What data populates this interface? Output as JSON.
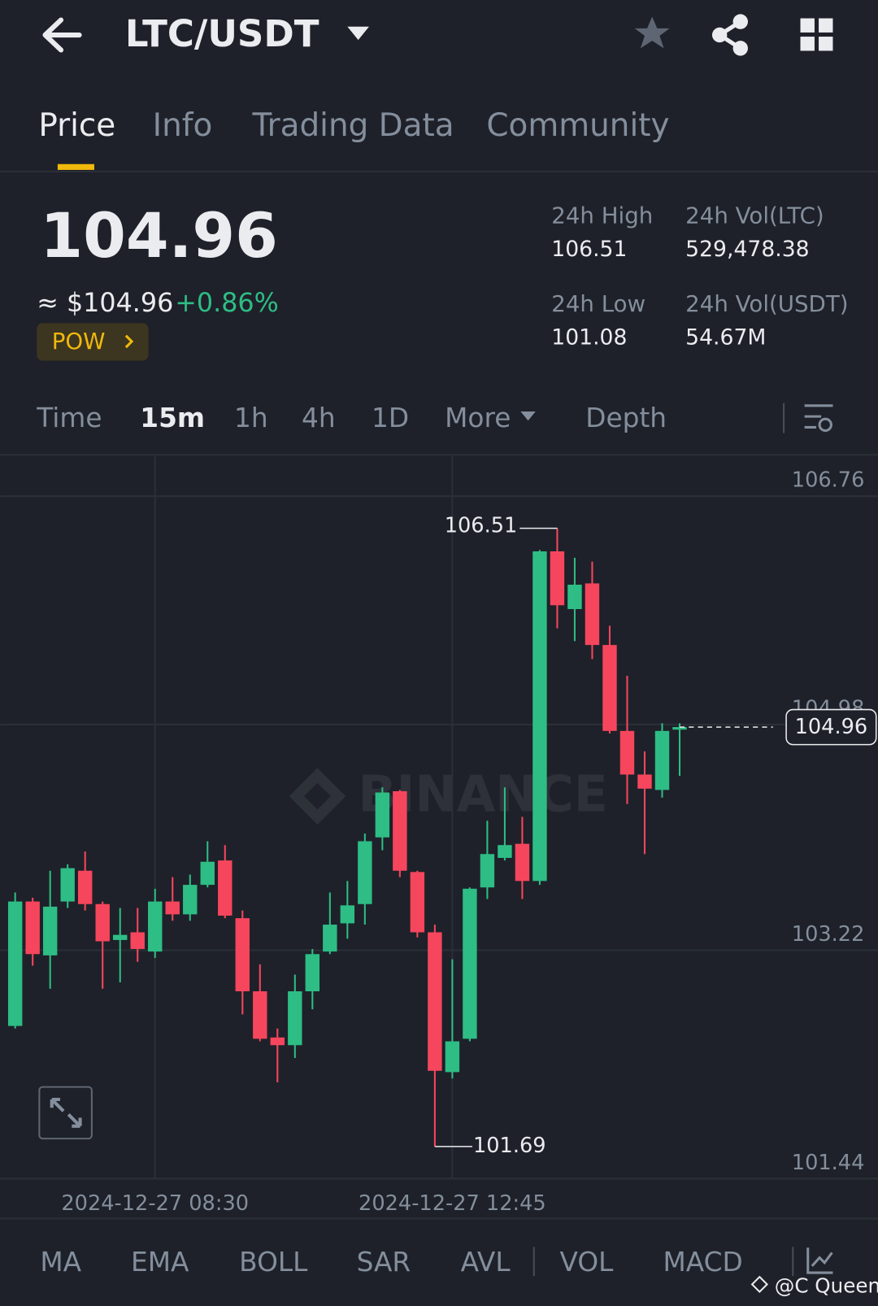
{
  "header": {
    "title": "LTC/USDT"
  },
  "tabs": [
    "Price",
    "Info",
    "Trading Data",
    "Community"
  ],
  "ticker": {
    "price": "104.96",
    "approx": "≈ $104.96",
    "change": "+0.86%",
    "tag": "POW",
    "stats": [
      {
        "label": "24h High",
        "value": "106.51"
      },
      {
        "label": "24h Vol(LTC)",
        "value": "529,478.38"
      },
      {
        "label": "24h Low",
        "value": "101.08"
      },
      {
        "label": "24h Vol(USDT)",
        "value": "54.67M"
      }
    ]
  },
  "intervals": [
    "Time",
    "15m",
    "1h",
    "4h",
    "1D",
    "More",
    "Depth"
  ],
  "chart_data": {
    "type": "candlestick",
    "watermark": "BINANCE",
    "categories": [
      null,
      null,
      null,
      null,
      null,
      null,
      null,
      null,
      "2024-12-27 08:30",
      null,
      null,
      null,
      null,
      null,
      null,
      null,
      null,
      null,
      null,
      null,
      null,
      null,
      null,
      null,
      null,
      "2024-12-27 12:45",
      null,
      null,
      null,
      null,
      null,
      null,
      null,
      null,
      null,
      null,
      null,
      null,
      null
    ],
    "open": [
      102.63,
      103.6,
      103.18,
      103.6,
      103.84,
      103.58,
      103.3,
      103.36,
      103.21,
      103.6,
      103.5,
      103.73,
      103.92,
      103.47,
      102.9,
      102.54,
      102.48,
      102.9,
      103.21,
      103.43,
      103.58,
      104.1,
      104.46,
      103.83,
      103.36,
      102.27,
      102.53,
      103.71,
      103.94,
      104.05,
      103.76,
      106.33,
      105.88,
      106.08,
      105.6,
      104.93,
      104.59,
      104.47,
      104.94
    ],
    "high": [
      103.67,
      103.63,
      103.84,
      103.89,
      103.99,
      103.6,
      103.55,
      103.55,
      103.7,
      103.79,
      103.81,
      104.07,
      104.04,
      103.53,
      103.11,
      102.61,
      103.03,
      103.23,
      103.67,
      103.76,
      104.13,
      104.49,
      104.47,
      103.84,
      103.42,
      103.15,
      103.71,
      104.23,
      104.49,
      104.26,
      106.34,
      106.51,
      106.28,
      106.25,
      105.75,
      105.36,
      104.77,
      104.99,
      104.99
    ],
    "low": [
      102.61,
      103.1,
      102.92,
      103.55,
      103.53,
      102.92,
      102.97,
      103.13,
      103.16,
      103.45,
      103.45,
      103.71,
      103.47,
      102.72,
      102.51,
      102.19,
      102.38,
      102.76,
      103.19,
      103.31,
      103.42,
      104.0,
      103.79,
      103.32,
      101.69,
      102.22,
      102.51,
      103.62,
      103.92,
      103.62,
      103.73,
      105.73,
      105.63,
      105.49,
      104.91,
      104.36,
      103.97,
      104.41,
      104.58
    ],
    "close": [
      103.6,
      103.19,
      103.56,
      103.86,
      103.58,
      103.29,
      103.34,
      103.23,
      103.6,
      103.5,
      103.73,
      103.91,
      103.49,
      102.9,
      102.53,
      102.48,
      102.9,
      103.19,
      103.42,
      103.57,
      104.07,
      104.45,
      103.84,
      103.36,
      102.28,
      102.51,
      103.7,
      103.97,
      104.04,
      103.76,
      106.33,
      105.91,
      106.07,
      105.6,
      104.93,
      104.59,
      104.48,
      104.93,
      104.96
    ],
    "up_color": "#2ebd85",
    "down_color": "#f6465d",
    "ylim": [
      101.44,
      107.07
    ],
    "yticks": [
      101.44,
      103.22,
      104.98,
      106.76
    ],
    "grid": true
  },
  "indicators": [
    "MA",
    "EMA",
    "BOLL",
    "SAR",
    "AVL",
    "VOL",
    "MACD"
  ],
  "credit": "@C Queen"
}
